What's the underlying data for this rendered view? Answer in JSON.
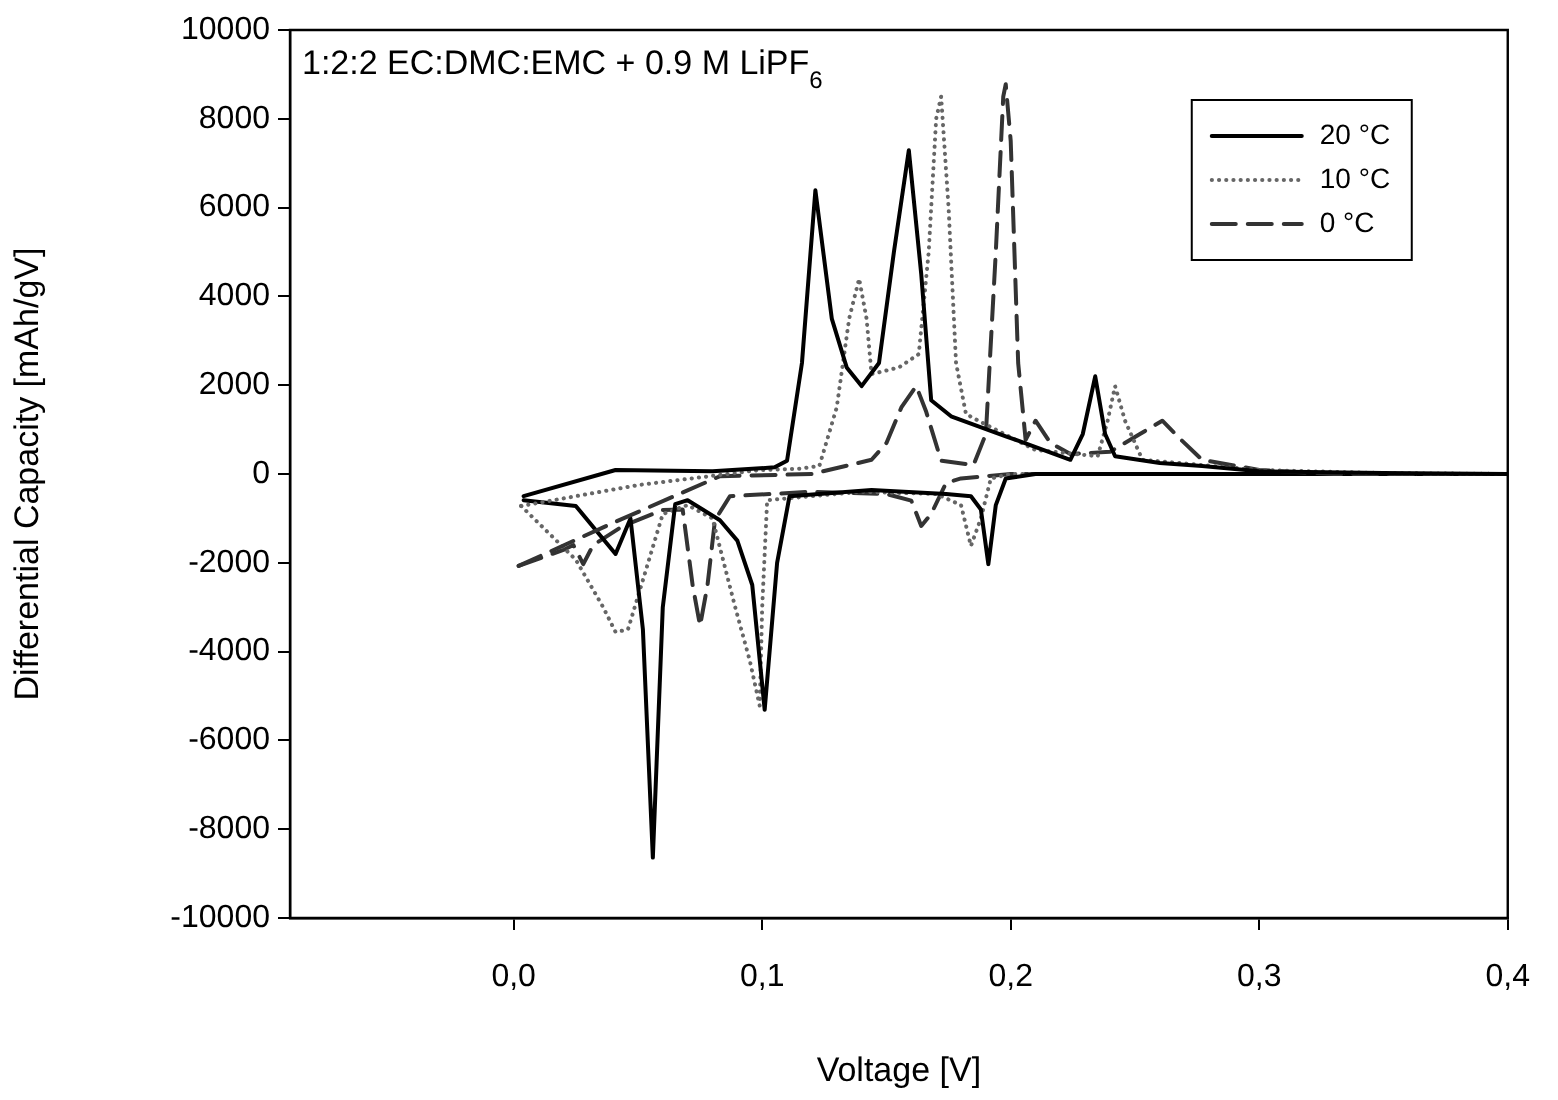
{
  "chart_data": {
    "type": "line",
    "xlabel": "Voltage [V]",
    "ylabel": "Differential Capacity [mAh/gV]",
    "annotations": [
      "1:2:2 EC:DMC:EMC + 0.9 M LiPF$_{6}$"
    ],
    "xlim": [
      -0.09,
      0.4
    ],
    "xticks": [
      {
        "value": 0,
        "label": "0,0"
      },
      {
        "value": 0.1,
        "label": "0,1"
      },
      {
        "value": 0.2,
        "label": "0,2"
      },
      {
        "value": 0.3,
        "label": "0,3"
      },
      {
        "value": 0.4,
        "label": "0,4"
      }
    ],
    "ylim": [
      -10000,
      10000
    ],
    "yticks": [
      -10000,
      -8000,
      -6000,
      -4000,
      -2000,
      0,
      2000,
      4000,
      6000,
      8000,
      10000
    ],
    "grid": false,
    "legend": "top right",
    "marker": "none",
    "series": [
      {
        "name": "20 °C",
        "color": "#000000",
        "line_style": "solid",
        "x": [
          0.004,
          0.041,
          0.08,
          0.105,
          0.11,
          0.116,
          0.1214,
          0.128,
          0.134,
          0.14,
          0.147,
          0.153,
          0.159,
          0.164,
          0.168,
          0.176,
          0.198,
          0.224,
          0.229,
          0.234,
          0.238,
          0.242,
          0.26,
          0.277,
          0.3,
          0.35,
          0.4
        ],
        "values": [
          -500,
          90,
          60,
          150,
          300,
          2500,
          6390,
          3500,
          2400,
          1980,
          2500,
          5000,
          7290,
          4500,
          1660,
          1300,
          850,
          320,
          900,
          2200,
          900,
          400,
          250,
          180,
          60,
          20,
          0
        ]
      },
      {
        "name": "10 °C",
        "color": "#666666",
        "line_style": "dotted",
        "x": [
          0.003,
          0.05,
          0.099,
          0.115,
          0.123,
          0.13,
          0.135,
          0.139,
          0.142,
          0.144,
          0.155,
          0.163,
          0.167,
          0.17,
          0.172,
          0.175,
          0.178,
          0.182,
          0.187,
          0.21,
          0.235,
          0.239,
          0.242,
          0.246,
          0.253,
          0.3,
          0.35,
          0.4
        ],
        "values": [
          -720,
          -250,
          90,
          120,
          180,
          1500,
          3500,
          4400,
          3500,
          2250,
          2400,
          2700,
          5000,
          8000,
          8500,
          6000,
          2500,
          1350,
          1200,
          540,
          400,
          1200,
          1980,
          1200,
          320,
          90,
          20,
          0
        ]
      },
      {
        "name": "0 °C",
        "color": "#333333",
        "line_style": "dashed",
        "x": [
          0.002,
          0.04,
          0.083,
          0.12,
          0.144,
          0.15,
          0.156,
          0.162,
          0.166,
          0.172,
          0.185,
          0.19,
          0.194,
          0.197,
          0.198,
          0.2,
          0.203,
          0.206,
          0.21,
          0.216,
          0.224,
          0.24,
          0.252,
          0.261,
          0.268,
          0.277,
          0.3,
          0.33,
          0.4
        ],
        "values": [
          -2070,
          -1100,
          -50,
          0,
          320,
          700,
          1500,
          1980,
          1400,
          300,
          200,
          900,
          5000,
          8500,
          8780,
          7500,
          2500,
          770,
          1200,
          700,
          450,
          500,
          900,
          1200,
          800,
          320,
          90,
          0,
          0
        ]
      },
      {
        "color": "#000000",
        "line_style": "solid",
        "x": [
          0.004,
          0.025,
          0.041,
          0.047,
          0.052,
          0.056,
          0.06,
          0.065,
          0.07,
          0.083,
          0.09,
          0.096,
          0.101,
          0.106,
          0.111,
          0.144,
          0.174,
          0.184,
          0.188,
          0.191,
          0.194,
          0.198,
          0.21,
          0.3,
          0.4
        ],
        "values": [
          -590,
          -720,
          -1800,
          -1000,
          -3500,
          -8640,
          -3000,
          -680,
          -590,
          -1040,
          -1500,
          -2500,
          -5310,
          -2000,
          -500,
          -360,
          -450,
          -500,
          -800,
          -2030,
          -700,
          -100,
          0,
          0,
          0
        ]
      },
      {
        "color": "#666666",
        "line_style": "dotted",
        "x": [
          0.003,
          0.025,
          0.036,
          0.041,
          0.046,
          0.052,
          0.06,
          0.07,
          0.08,
          0.089,
          0.095,
          0.099,
          0.1,
          0.102,
          0.14,
          0.17,
          0.18,
          0.184,
          0.188,
          0.192,
          0.2,
          0.3,
          0.4
        ],
        "values": [
          -720,
          -1930,
          -3000,
          -3560,
          -3500,
          -2390,
          -900,
          -700,
          -1000,
          -2970,
          -4200,
          -5220,
          -3000,
          -590,
          -400,
          -450,
          -700,
          -1620,
          -1000,
          -100,
          0,
          0,
          0
        ]
      },
      {
        "color": "#333333",
        "line_style": "dashed",
        "x": [
          0.002,
          0.02,
          0.024,
          0.028,
          0.032,
          0.044,
          0.06,
          0.068,
          0.072,
          0.075,
          0.078,
          0.081,
          0.087,
          0.12,
          0.15,
          0.16,
          0.164,
          0.168,
          0.174,
          0.18,
          0.2,
          0.4
        ],
        "values": [
          -2070,
          -1710,
          -1600,
          -2030,
          -1600,
          -1170,
          -810,
          -800,
          -2500,
          -3420,
          -2500,
          -1040,
          -500,
          -400,
          -450,
          -600,
          -1170,
          -900,
          -200,
          -100,
          0,
          0
        ]
      }
    ]
  }
}
